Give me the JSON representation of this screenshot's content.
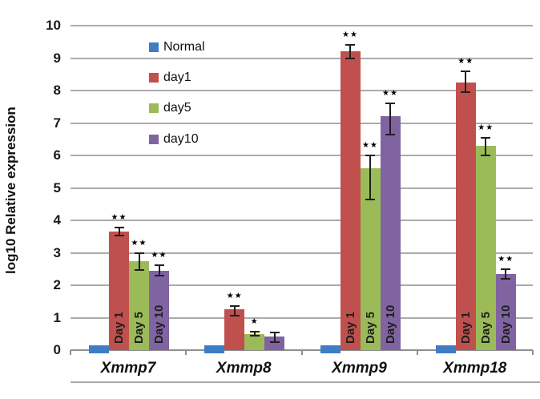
{
  "figure": {
    "background": "#ffffff"
  },
  "chart_data": {
    "type": "bar",
    "title": "",
    "xlabel": "",
    "ylabel": "log10 Relative expression",
    "ylim": [
      0,
      10
    ],
    "yticks": [
      0,
      1,
      2,
      3,
      4,
      5,
      6,
      7,
      8,
      9,
      10
    ],
    "grid": true,
    "legend_position": "inside-top-left",
    "categories": [
      "Xmmp7",
      "Xmmp8",
      "Xmmp9",
      "Xmmp18"
    ],
    "series": [
      {
        "name": "Normal",
        "color": "#3E7DC6",
        "values": [
          0.15,
          0.15,
          0.15,
          0.15
        ],
        "err_low": [
          null,
          null,
          null,
          null
        ],
        "err_high": [
          null,
          null,
          null,
          null
        ],
        "significance": [
          "",
          "",
          "",
          ""
        ],
        "bar_labels": [
          "",
          "",
          "",
          ""
        ]
      },
      {
        "name": "day1",
        "color": "#C0504D",
        "values": [
          3.65,
          1.25,
          9.2,
          8.25
        ],
        "err_low": [
          3.52,
          1.05,
          9.0,
          7.95
        ],
        "err_high": [
          3.78,
          1.37,
          9.4,
          8.6
        ],
        "significance": [
          "**",
          "**",
          "**",
          "**"
        ],
        "bar_labels": [
          "Day 1",
          "",
          "Day 1",
          "Day 1"
        ]
      },
      {
        "name": "day5",
        "color": "#9BBB59",
        "values": [
          2.75,
          0.5,
          5.6,
          6.3
        ],
        "err_low": [
          2.48,
          0.44,
          4.65,
          6.0
        ],
        "err_high": [
          3.0,
          0.56,
          6.0,
          6.55
        ],
        "significance": [
          "**",
          "*",
          "**",
          "**"
        ],
        "bar_labels": [
          "Day 5",
          "",
          "Day 5",
          "Day 5"
        ]
      },
      {
        "name": "day10",
        "color": "#8064A2",
        "values": [
          2.45,
          0.42,
          7.2,
          2.35
        ],
        "err_low": [
          2.3,
          0.25,
          6.65,
          2.2
        ],
        "err_high": [
          2.62,
          0.55,
          7.6,
          2.5
        ],
        "significance": [
          "**",
          "",
          "**",
          "**"
        ],
        "bar_labels": [
          "Day 10",
          "",
          "Day 10",
          "Day 10"
        ]
      }
    ]
  }
}
